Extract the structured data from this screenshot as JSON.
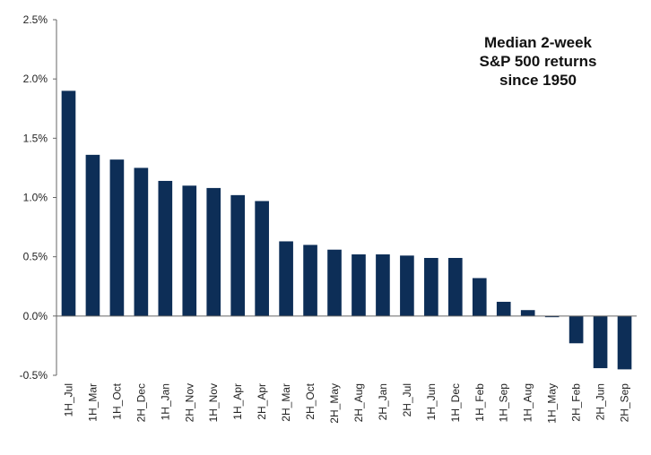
{
  "chart_data": {
    "type": "bar",
    "title_lines": [
      "Median 2-week",
      "S&P 500 returns",
      "since 1950"
    ],
    "xlabel": "",
    "ylabel": "",
    "ylim": [
      -0.5,
      2.5
    ],
    "y_ticks": [
      2.5,
      2.0,
      1.5,
      1.0,
      0.5,
      0.0,
      -0.5
    ],
    "y_tick_labels": [
      "2.5%",
      "2.0%",
      "1.5%",
      "1.0%",
      "0.5%",
      "0.0%",
      "-0.5%"
    ],
    "grid": false,
    "legend": "none",
    "bar_color": "#0d2e57",
    "categories": [
      "1H_Jul",
      "1H_Mar",
      "1H_Oct",
      "2H_Dec",
      "1H_Jan",
      "2H_Nov",
      "1H_Nov",
      "1H_Apr",
      "2H_Apr",
      "2H_Mar",
      "2H_Oct",
      "2H_May",
      "2H_Aug",
      "2H_Jan",
      "2H_Jul",
      "1H_Jun",
      "1H_Dec",
      "1H_Feb",
      "1H_Sep",
      "1H_Aug",
      "1H_May",
      "2H_Feb",
      "2H_Jun",
      "2H_Sep"
    ],
    "values": [
      1.9,
      1.36,
      1.32,
      1.25,
      1.14,
      1.1,
      1.08,
      1.02,
      0.97,
      0.63,
      0.6,
      0.56,
      0.52,
      0.52,
      0.51,
      0.49,
      0.49,
      0.32,
      0.12,
      0.05,
      -0.01,
      -0.23,
      -0.44,
      -0.45
    ]
  }
}
